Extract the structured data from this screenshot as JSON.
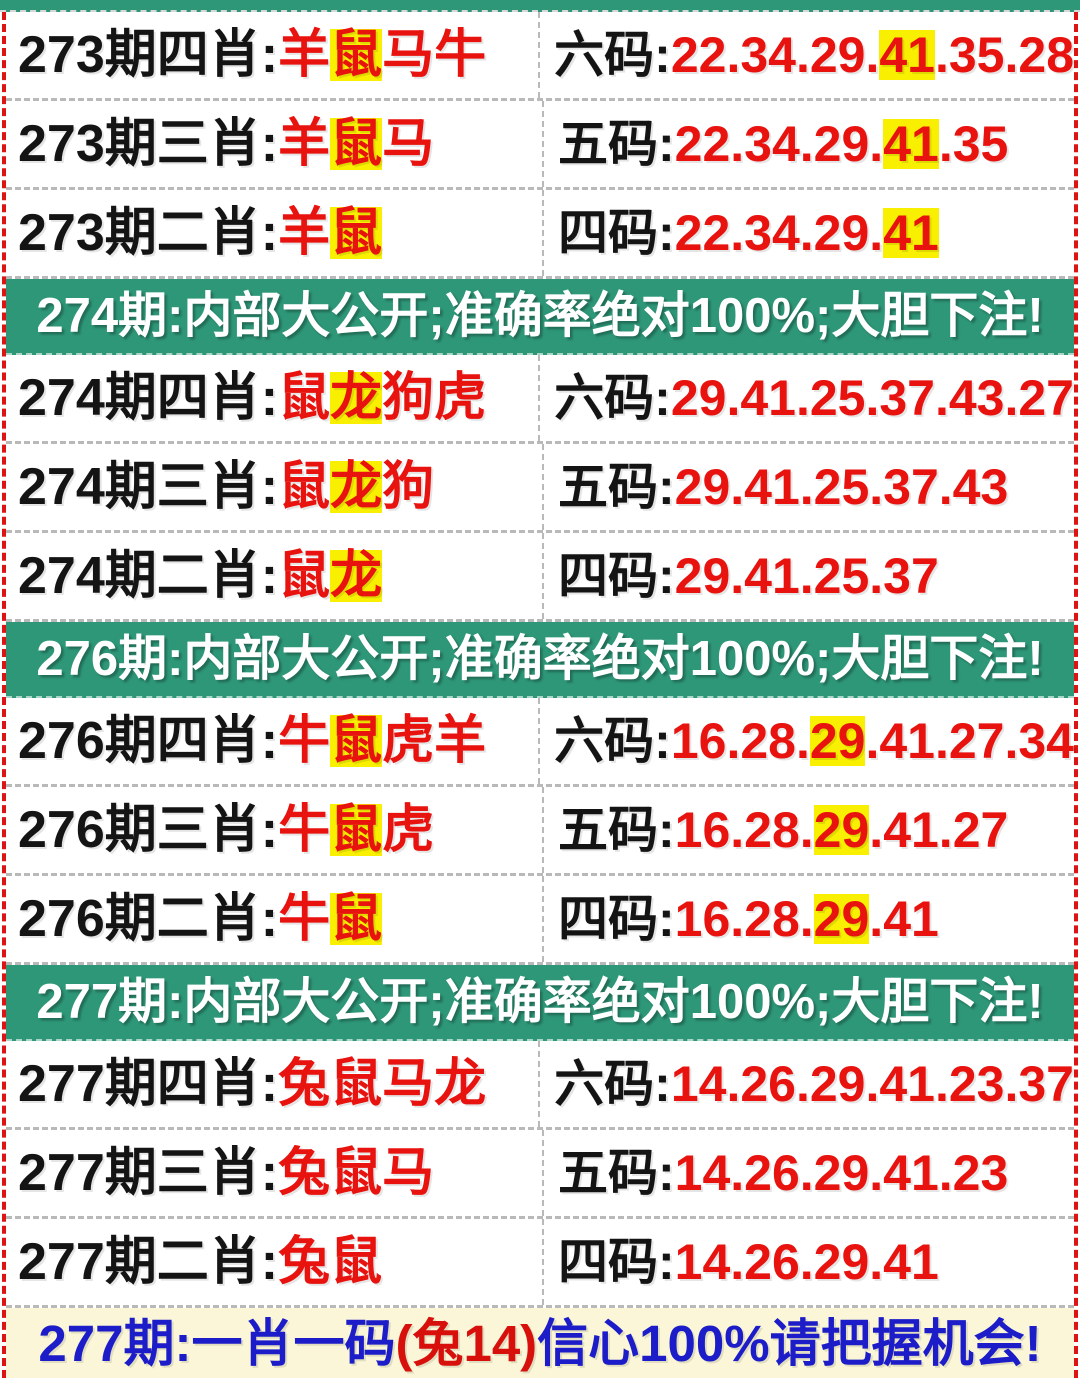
{
  "colors": {
    "banner_green": "#2e9778",
    "text_red": "#e8120e",
    "text_black": "#141414",
    "highlight_yellow": "#f8f000",
    "footer_blue": "#1c1cc8",
    "footer_red": "#d8100c",
    "footer_bg": "#faf6d7",
    "side_border_red": "#dd1414"
  },
  "sections": [
    {
      "banner": null,
      "rows": [
        {
          "left": [
            {
              "text": "273期四肖:",
              "color": "black"
            },
            {
              "text": "羊",
              "color": "red"
            },
            {
              "text": "鼠",
              "color": "red",
              "hl": true
            },
            {
              "text": "马牛",
              "color": "red"
            }
          ],
          "right": [
            {
              "text": "六码:",
              "color": "black"
            },
            {
              "text": "22.34.29.",
              "color": "red"
            },
            {
              "text": "41",
              "color": "red",
              "hl": true
            },
            {
              "text": ".35.28",
              "color": "red"
            }
          ]
        },
        {
          "left": [
            {
              "text": "273期三肖:",
              "color": "black"
            },
            {
              "text": "羊",
              "color": "red"
            },
            {
              "text": "鼠",
              "color": "red",
              "hl": true
            },
            {
              "text": "马",
              "color": "red"
            }
          ],
          "right": [
            {
              "text": "五码:",
              "color": "black"
            },
            {
              "text": "22.34.29.",
              "color": "red"
            },
            {
              "text": "41",
              "color": "red",
              "hl": true
            },
            {
              "text": ".35",
              "color": "red"
            }
          ]
        },
        {
          "left": [
            {
              "text": "273期二肖:",
              "color": "black"
            },
            {
              "text": "羊",
              "color": "red"
            },
            {
              "text": "鼠",
              "color": "red",
              "hl": true
            }
          ],
          "right": [
            {
              "text": "四码:",
              "color": "black"
            },
            {
              "text": "22.34.29.",
              "color": "red"
            },
            {
              "text": "41",
              "color": "red",
              "hl": true
            }
          ]
        }
      ]
    },
    {
      "banner": "274期:内部大公开;准确率绝对100%;大胆下注!",
      "rows": [
        {
          "left": [
            {
              "text": "274期四肖:",
              "color": "black"
            },
            {
              "text": "鼠",
              "color": "red"
            },
            {
              "text": "龙",
              "color": "red",
              "hl": true
            },
            {
              "text": "狗虎",
              "color": "red"
            }
          ],
          "right": [
            {
              "text": "六码:",
              "color": "black"
            },
            {
              "text": "29.41.25.37.43.27",
              "color": "red"
            }
          ]
        },
        {
          "left": [
            {
              "text": "274期三肖:",
              "color": "black"
            },
            {
              "text": "鼠",
              "color": "red"
            },
            {
              "text": "龙",
              "color": "red",
              "hl": true
            },
            {
              "text": "狗",
              "color": "red"
            }
          ],
          "right": [
            {
              "text": "五码:",
              "color": "black"
            },
            {
              "text": "29.41.25.37.43",
              "color": "red"
            }
          ]
        },
        {
          "left": [
            {
              "text": "274期二肖:",
              "color": "black"
            },
            {
              "text": "鼠",
              "color": "red"
            },
            {
              "text": "龙",
              "color": "red",
              "hl": true
            }
          ],
          "right": [
            {
              "text": "四码:",
              "color": "black"
            },
            {
              "text": "29.41.25.37",
              "color": "red"
            }
          ]
        }
      ]
    },
    {
      "banner": "276期:内部大公开;准确率绝对100%;大胆下注!",
      "rows": [
        {
          "left": [
            {
              "text": "276期四肖:",
              "color": "black"
            },
            {
              "text": "牛",
              "color": "red"
            },
            {
              "text": "鼠",
              "color": "red",
              "hl": true
            },
            {
              "text": "虎羊",
              "color": "red"
            }
          ],
          "right": [
            {
              "text": "六码:",
              "color": "black"
            },
            {
              "text": "16.28.",
              "color": "red"
            },
            {
              "text": "29",
              "color": "red",
              "hl": true
            },
            {
              "text": ".41.27.34",
              "color": "red"
            }
          ]
        },
        {
          "left": [
            {
              "text": "276期三肖:",
              "color": "black"
            },
            {
              "text": "牛",
              "color": "red"
            },
            {
              "text": "鼠",
              "color": "red",
              "hl": true
            },
            {
              "text": "虎",
              "color": "red"
            }
          ],
          "right": [
            {
              "text": "五码:",
              "color": "black"
            },
            {
              "text": "16.28.",
              "color": "red"
            },
            {
              "text": "29",
              "color": "red",
              "hl": true
            },
            {
              "text": ".41.27",
              "color": "red"
            }
          ]
        },
        {
          "left": [
            {
              "text": "276期二肖:",
              "color": "black"
            },
            {
              "text": "牛",
              "color": "red"
            },
            {
              "text": "鼠",
              "color": "red",
              "hl": true
            }
          ],
          "right": [
            {
              "text": "四码:",
              "color": "black"
            },
            {
              "text": "16.28.",
              "color": "red"
            },
            {
              "text": "29",
              "color": "red",
              "hl": true
            },
            {
              "text": ".41",
              "color": "red"
            }
          ]
        }
      ]
    },
    {
      "banner": "277期:内部大公开;准确率绝对100%;大胆下注!",
      "rows": [
        {
          "left": [
            {
              "text": "277期四肖:",
              "color": "black"
            },
            {
              "text": "兔鼠马龙",
              "color": "red"
            }
          ],
          "right": [
            {
              "text": "六码:",
              "color": "black"
            },
            {
              "text": "14.26.29.41.23.37",
              "color": "red"
            }
          ]
        },
        {
          "left": [
            {
              "text": "277期三肖:",
              "color": "black"
            },
            {
              "text": "兔鼠马",
              "color": "red"
            }
          ],
          "right": [
            {
              "text": "五码:",
              "color": "black"
            },
            {
              "text": "14.26.29.41.23",
              "color": "red"
            }
          ]
        },
        {
          "left": [
            {
              "text": "277期二肖:",
              "color": "black"
            },
            {
              "text": "兔鼠",
              "color": "red"
            }
          ],
          "right": [
            {
              "text": "四码:",
              "color": "black"
            },
            {
              "text": "14.26.29.41",
              "color": "red"
            }
          ]
        }
      ]
    }
  ],
  "footer": {
    "segments": [
      {
        "text": "277期:一肖一码",
        "color": "blue"
      },
      {
        "text": "(兔14)",
        "color": "red"
      },
      {
        "text": "信心100%请把握机会!",
        "color": "blue"
      }
    ]
  }
}
